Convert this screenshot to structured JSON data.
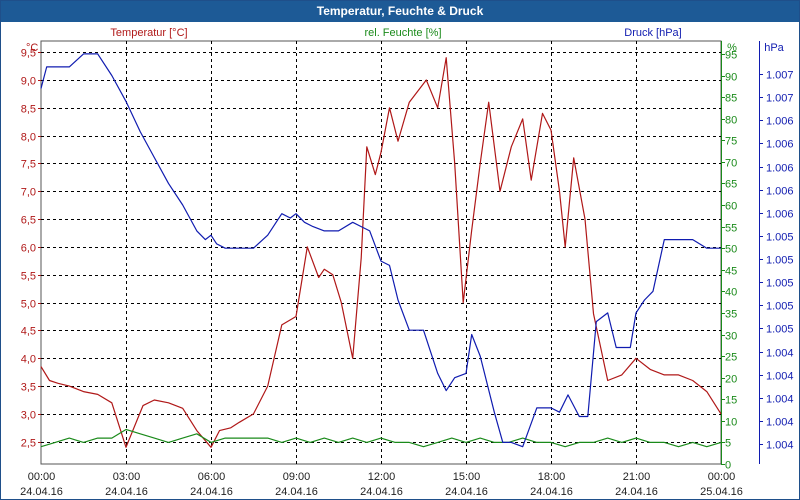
{
  "window": {
    "title": "Temperatur, Feuchte & Druck"
  },
  "colors": {
    "temperature": "#b01818",
    "humidity": "#1a8a1a",
    "pressure": "#101cb0",
    "axis_text": "#222222",
    "grid": "#000000",
    "title_bar": "#1d5a96"
  },
  "chart_data": {
    "type": "line",
    "title": "Temperatur, Feuchte & Druck",
    "grid": true,
    "x": {
      "ticks": [
        {
          "h": 0,
          "time": "00:00",
          "date": "24.04.16"
        },
        {
          "h": 3,
          "time": "03:00",
          "date": "24.04.16"
        },
        {
          "h": 6,
          "time": "06:00",
          "date": "24.04.16"
        },
        {
          "h": 9,
          "time": "09:00",
          "date": "24.04.16"
        },
        {
          "h": 12,
          "time": "12:00",
          "date": "24.04.16"
        },
        {
          "h": 15,
          "time": "15:00",
          "date": "24.04.16"
        },
        {
          "h": 18,
          "time": "18:00",
          "date": "24.04.16"
        },
        {
          "h": 21,
          "time": "21:00",
          "date": "24.04.16"
        },
        {
          "h": 24,
          "time": "00:00",
          "date": "25.04.16"
        }
      ]
    },
    "axes": {
      "temperature": {
        "label": "Temperatur [°C]",
        "unit": "°C",
        "ylim": [
          2.1,
          9.7
        ],
        "ticks": [
          "2,5",
          "3,0",
          "3,5",
          "4,0",
          "4,5",
          "5,0",
          "5,5",
          "6,0",
          "6,5",
          "7,0",
          "7,5",
          "8,0",
          "8,5",
          "9,0",
          "9,5"
        ]
      },
      "humidity": {
        "label": "rel. Feuchte [%]",
        "unit": "%",
        "ylim": [
          0,
          98
        ],
        "ticks": [
          "0",
          "5",
          "10",
          "15",
          "20",
          "25",
          "30",
          "35",
          "40",
          "45",
          "50",
          "55",
          "60",
          "65",
          "70",
          "75",
          "80",
          "85",
          "90",
          "95"
        ]
      },
      "pressure": {
        "label": "Druck [hPa]",
        "unit": "hPa",
        "ticks": [
          "1.004",
          "1.004",
          "1.004",
          "1.004",
          "1.004",
          "1.005",
          "1.005",
          "1.005",
          "1.005",
          "1.005",
          "1.006",
          "1.006",
          "1.006",
          "1.006",
          "1.006",
          "1.007",
          "1.007"
        ]
      }
    },
    "series": [
      {
        "name": "Temperatur [°C]",
        "axis": "temperature",
        "x": [
          0,
          0.3,
          0.6,
          1,
          1.5,
          2,
          2.5,
          3,
          3.4,
          3.6,
          4,
          4.5,
          5,
          5.5,
          6,
          6.3,
          6.7,
          7,
          7.5,
          8,
          8.5,
          9,
          9.4,
          9.8,
          10,
          10.3,
          10.6,
          11,
          11.3,
          11.5,
          11.8,
          12,
          12.3,
          12.6,
          13,
          13.3,
          13.6,
          14,
          14.3,
          14.6,
          14.9,
          15.2,
          15.5,
          15.8,
          16.2,
          16.6,
          17,
          17.3,
          17.7,
          18,
          18.3,
          18.5,
          18.8,
          19.2,
          19.5,
          20,
          20.5,
          21,
          21.5,
          22,
          22.5,
          23,
          23.5,
          24
        ],
        "y": [
          3.85,
          3.6,
          3.55,
          3.5,
          3.4,
          3.35,
          3.2,
          2.4,
          2.9,
          3.15,
          3.25,
          3.2,
          3.1,
          2.7,
          2.4,
          2.7,
          2.75,
          2.85,
          3.0,
          3.5,
          4.6,
          4.75,
          6.0,
          5.45,
          5.6,
          5.5,
          5.0,
          4.0,
          5.8,
          7.8,
          7.3,
          7.7,
          8.5,
          7.9,
          8.6,
          8.8,
          9.0,
          8.5,
          9.4,
          7.5,
          5.0,
          6.3,
          7.5,
          8.6,
          7.0,
          7.8,
          8.3,
          7.2,
          8.4,
          8.1,
          7.0,
          6.0,
          7.6,
          6.5,
          4.8,
          3.6,
          3.7,
          4.0,
          3.8,
          3.7,
          3.7,
          3.6,
          3.4,
          3.0
        ]
      },
      {
        "name": "rel. Feuchte [%]",
        "axis": "humidity",
        "x": [
          0,
          0.5,
          1,
          1.5,
          2,
          2.5,
          3,
          3.5,
          4,
          4.5,
          5,
          5.5,
          6,
          6.5,
          7,
          7.5,
          8,
          8.5,
          9,
          9.5,
          10,
          10.5,
          11,
          11.5,
          12,
          12.5,
          13,
          13.5,
          14,
          14.5,
          15,
          15.5,
          16,
          16.5,
          17,
          17.5,
          18,
          18.5,
          19,
          19.5,
          20,
          20.5,
          21,
          21.5,
          22,
          22.5,
          23,
          23.5,
          24
        ],
        "y": [
          4,
          5,
          6,
          5,
          6,
          6,
          8,
          7,
          6,
          5,
          6,
          7,
          5,
          6,
          6,
          6,
          6,
          5,
          6,
          5,
          6,
          5,
          6,
          5,
          6,
          5,
          5,
          4,
          5,
          6,
          5,
          6,
          5,
          5,
          6,
          5,
          5,
          4,
          5,
          5,
          6,
          5,
          6,
          5,
          5,
          4,
          5,
          4,
          5
        ]
      },
      {
        "name": "Druck [hPa]",
        "axis": "pressure",
        "x": [
          0,
          0.2,
          0.5,
          1,
          1.5,
          2,
          2.5,
          3,
          3.5,
          4,
          4.5,
          5,
          5.5,
          5.8,
          6,
          6.2,
          6.5,
          7,
          7.5,
          8,
          8.5,
          8.8,
          9,
          9.3,
          9.6,
          10,
          10.5,
          11,
          11.3,
          11.6,
          12,
          12.3,
          12.6,
          13,
          13.5,
          14,
          14.3,
          14.6,
          15,
          15.2,
          15.5,
          16,
          16.3,
          16.6,
          17,
          17.5,
          18,
          18.3,
          18.6,
          19,
          19.3,
          19.6,
          20,
          20.3,
          20.6,
          20.8,
          21,
          21.3,
          21.6,
          22,
          22.3,
          22.6,
          23,
          23.5,
          24
        ],
        "y": [
          87,
          92,
          92,
          92,
          95,
          95,
          90,
          84,
          77,
          71,
          65,
          60,
          54,
          52,
          53,
          51,
          50,
          50,
          50,
          53,
          58,
          57,
          58,
          56,
          55,
          54,
          54,
          56,
          55,
          54,
          47,
          46,
          38,
          31,
          31,
          21,
          17,
          20,
          21,
          30,
          25,
          12,
          5,
          5,
          4,
          13,
          13,
          12,
          16,
          11,
          11,
          33,
          35,
          27,
          27,
          27,
          35,
          38,
          40,
          52,
          52,
          52,
          52,
          50,
          50
        ]
      }
    ]
  }
}
